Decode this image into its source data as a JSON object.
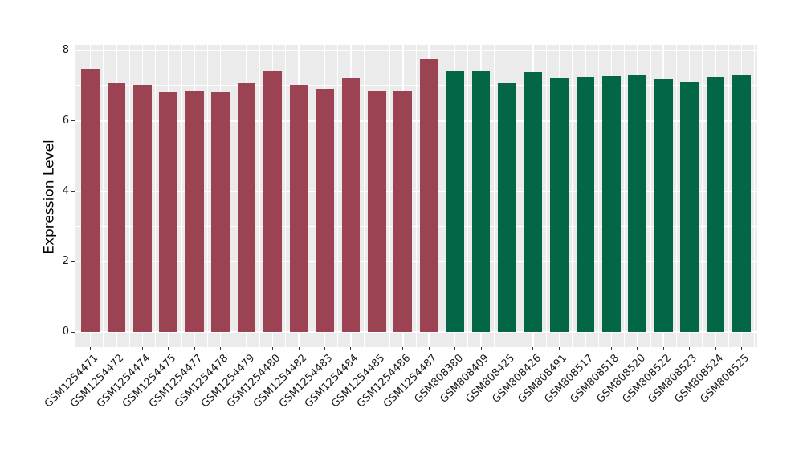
{
  "figure": {
    "background": "#ffffff",
    "panel_bg": "#ebebeb",
    "grid_color": "#ffffff",
    "tick_color": "#333333",
    "text_color": "#1a1a1a"
  },
  "chart_data": {
    "type": "bar",
    "title": "",
    "xlabel": "",
    "ylabel": "Expression Level",
    "ylim": [
      0,
      8.16
    ],
    "yticks": [
      0,
      2,
      4,
      6,
      8
    ],
    "yticks_minor": [
      1,
      3,
      5,
      7
    ],
    "grid": "white major+minor gridlines on gray panel, legend absent",
    "categories": [
      "GSM1254471",
      "GSM1254472",
      "GSM1254474",
      "GSM1254475",
      "GSM1254477",
      "GSM1254478",
      "GSM1254479",
      "GSM1254480",
      "GSM1254482",
      "GSM1254483",
      "GSM1254484",
      "GSM1254485",
      "GSM1254486",
      "GSM1254487",
      "GSM808380",
      "GSM808409",
      "GSM808425",
      "GSM808426",
      "GSM808491",
      "GSM808517",
      "GSM808518",
      "GSM808520",
      "GSM808522",
      "GSM808523",
      "GSM808524",
      "GSM808525"
    ],
    "values": [
      7.48,
      7.08,
      7.02,
      6.81,
      6.87,
      6.81,
      7.1,
      7.43,
      7.03,
      6.9,
      7.22,
      6.87,
      6.85,
      7.74,
      7.41,
      7.41,
      7.09,
      7.39,
      7.22,
      7.24,
      7.26,
      7.31,
      7.2,
      7.12,
      7.24,
      7.31
    ],
    "bar_groups": [
      "maroon",
      "maroon",
      "maroon",
      "maroon",
      "maroon",
      "maroon",
      "maroon",
      "maroon",
      "maroon",
      "maroon",
      "maroon",
      "maroon",
      "maroon",
      "maroon",
      "green",
      "green",
      "green",
      "green",
      "green",
      "green",
      "green",
      "green",
      "green",
      "green",
      "green",
      "green"
    ],
    "group_colors": {
      "maroon": "#9b4352",
      "green": "#026647"
    }
  }
}
